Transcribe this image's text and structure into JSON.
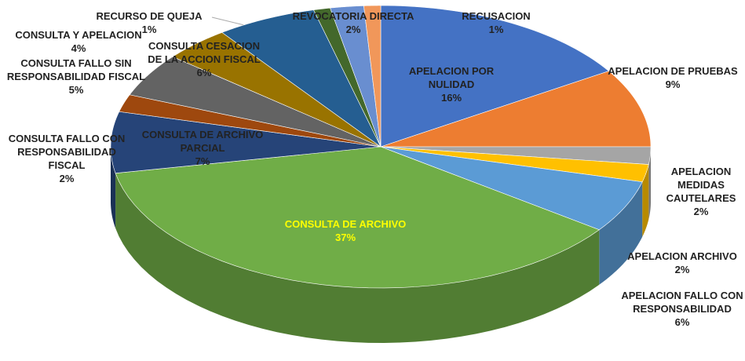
{
  "chart_data": {
    "type": "pie",
    "categories": [
      "APELACION POR NULIDAD",
      "APELACION DE PRUEBAS",
      "APELACION MEDIDAS CAUTELARES",
      "APELACION ARCHIVO",
      "APELACION FALLO CON RESPONSABILIDAD",
      "CONSULTA DE ARCHIVO",
      "CONSULTA DE ARCHIVO PARCIAL",
      "CONSULTA FALLO CON RESPONSABILIDAD FISCAL",
      "CONSULTA FALLO SIN RESPONSABILIDAD FISCAL",
      "CONSULTA Y APELACION",
      "CONSULTA CESACION DE LA ACCION FISCAL",
      "RECURSO DE QUEJA",
      "REVOCATORIA DIRECTA",
      "RECUSACION"
    ],
    "values": [
      16,
      9,
      2,
      2,
      6,
      37,
      7,
      2,
      5,
      4,
      6,
      1,
      2,
      1
    ],
    "value_labels": [
      "16%",
      "9%",
      "2%",
      "2%",
      "6%",
      "37%",
      "7%",
      "2%",
      "5%",
      "4%",
      "6%",
      "1%",
      "2%",
      "1%"
    ],
    "colors": [
      "#4472c4",
      "#ed7d31",
      "#a5a5a5",
      "#ffc000",
      "#5b9bd5",
      "#70ad47",
      "#264478",
      "#9e480e",
      "#636363",
      "#997300",
      "#255e91",
      "#43682b",
      "#698ed0",
      "#f1975a"
    ]
  }
}
